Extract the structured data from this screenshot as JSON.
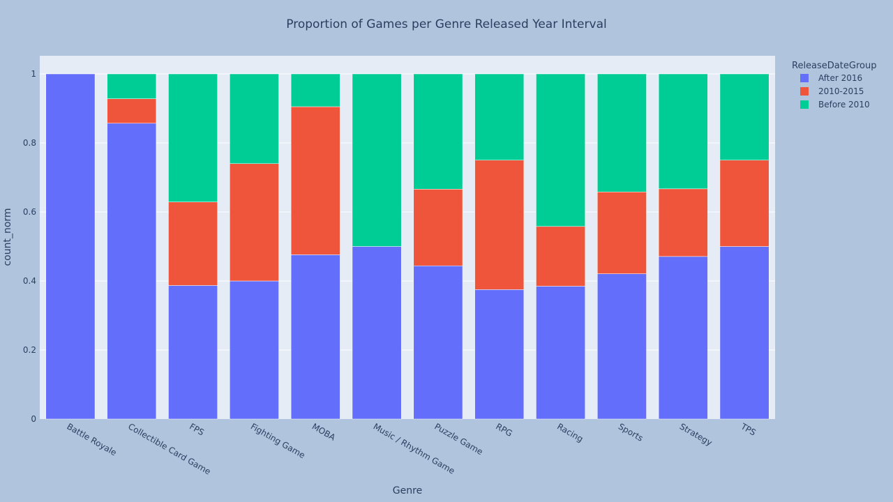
{
  "chart_data": {
    "type": "bar",
    "stacked": true,
    "title": "Proportion of Games per Genre Released Year Interval",
    "xlabel": "Genre",
    "ylabel": "count_norm",
    "ylim": [
      0,
      1
    ],
    "yticks": [
      "0",
      "0.2",
      "0.4",
      "0.6",
      "0.8",
      "1"
    ],
    "grid": true,
    "legend_title": "ReleaseDateGroup",
    "legend_position": "right",
    "categories": [
      "Battle Royale",
      "Collectible Card Game",
      "FPS",
      "Fighting Game",
      "MOBA",
      "Music / Rhythm Game",
      "Puzzle Game",
      "RPG",
      "Racing",
      "Sports",
      "Strategy",
      "TPS"
    ],
    "series": [
      {
        "name": "After 2016",
        "color": "#636efa",
        "values": [
          1.0,
          0.857,
          0.387,
          0.4,
          0.476,
          0.5,
          0.444,
          0.375,
          0.385,
          0.421,
          0.471,
          0.5
        ]
      },
      {
        "name": "2010-2015",
        "color": "#ef553b",
        "values": [
          0.0,
          0.071,
          0.242,
          0.34,
          0.429,
          0.0,
          0.222,
          0.375,
          0.173,
          0.237,
          0.196,
          0.25
        ]
      },
      {
        "name": "Before 2010",
        "color": "#00cc96",
        "values": [
          0.0,
          0.072,
          0.371,
          0.26,
          0.095,
          0.5,
          0.334,
          0.25,
          0.442,
          0.342,
          0.333,
          0.25
        ]
      }
    ]
  }
}
